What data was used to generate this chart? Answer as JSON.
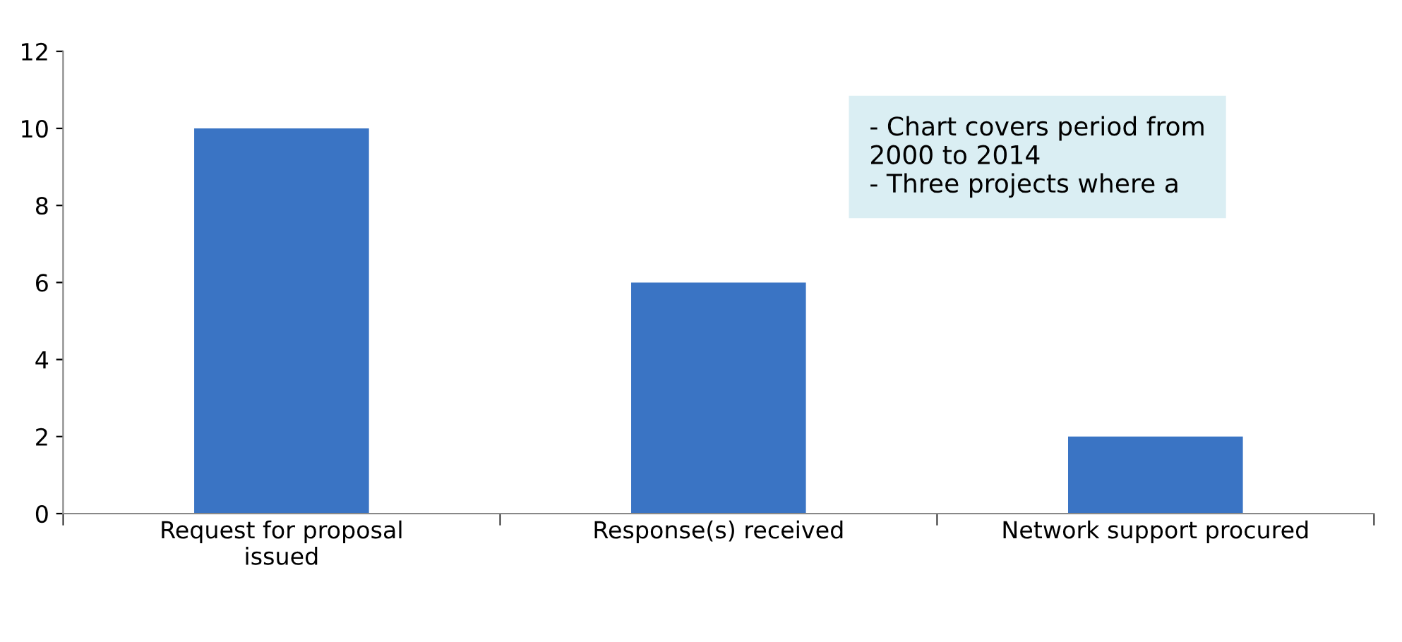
{
  "chart_data": {
    "type": "bar",
    "categories": [
      "Request for proposal\nissued",
      "Response(s) received",
      "Network support procured"
    ],
    "values": [
      10,
      6,
      2
    ],
    "color": "#3a74c4",
    "ylim": [
      0,
      12
    ],
    "yticks": [
      0,
      2,
      4,
      6,
      8,
      10,
      12
    ],
    "grid": false,
    "legend": false,
    "annotations": [
      "- Chart covers period from\n2000 to 2014\n- Three projects where a"
    ]
  }
}
